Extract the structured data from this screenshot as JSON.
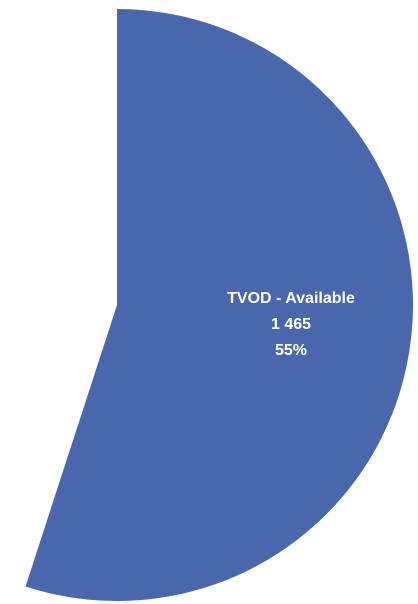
{
  "chart_data": {
    "type": "pie",
    "categories": [
      "TVOD - Available"
    ],
    "values": [
      55
    ],
    "value_labels": [
      "55%"
    ],
    "counts": [
      1465
    ],
    "count_labels": [
      "1 465"
    ],
    "colors": [
      "#4a67ad"
    ]
  }
}
